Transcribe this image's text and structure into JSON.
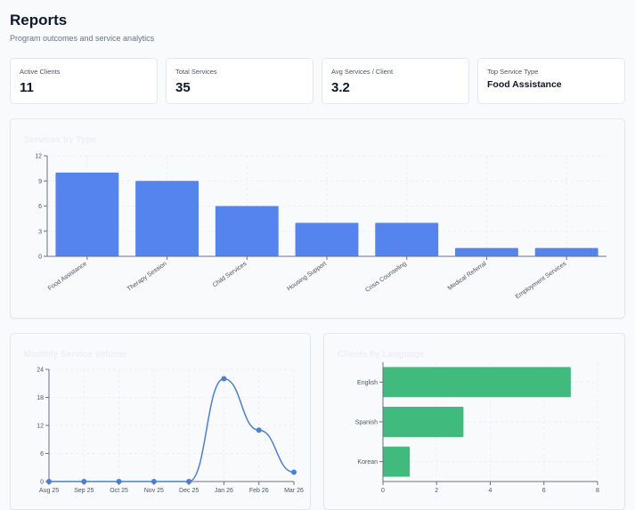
{
  "header": {
    "title": "Reports",
    "subtitle": "Program outcomes and service analytics"
  },
  "stats": [
    {
      "label": "Active Clients",
      "value": "11"
    },
    {
      "label": "Total Services",
      "value": "35"
    },
    {
      "label": "Avg Services / Client",
      "value": "3.2"
    },
    {
      "label": "Top Service Type",
      "value": "Food Assistance"
    }
  ],
  "panels": {
    "services_by_type": "Services by Type",
    "monthly_volume": "Monthly Service Volume",
    "clients_by_language": "Clients by Language"
  },
  "colors": {
    "bar_blue": "#5584ef",
    "line_blue": "#4a7fd4",
    "bar_green": "#40bb7d"
  },
  "chart_data": [
    {
      "type": "bar",
      "title": "Services by Type",
      "categories": [
        "Food Assistance",
        "Therapy Session",
        "Child Services",
        "Housing Support",
        "Crisis Counseling",
        "Medical Referral",
        "Employment Services"
      ],
      "values": [
        10,
        9,
        6,
        4,
        4,
        1,
        1
      ],
      "ylim": [
        0,
        12
      ],
      "yticks": [
        0,
        3,
        6,
        9,
        12
      ],
      "grid": true
    },
    {
      "type": "line",
      "title": "Monthly Service Volume",
      "x": [
        "Aug 25",
        "Sep 25",
        "Oct 25",
        "Nov 25",
        "Dec 25",
        "Jan 26",
        "Feb 26",
        "Mar 26"
      ],
      "values": [
        0,
        0,
        0,
        0,
        0,
        22,
        11,
        2
      ],
      "ylim": [
        0,
        24
      ],
      "yticks": [
        0,
        6,
        12,
        18,
        24
      ],
      "grid": true
    },
    {
      "type": "bar",
      "orientation": "horizontal",
      "title": "Clients by Language",
      "categories": [
        "English",
        "Spanish",
        "Korean"
      ],
      "values": [
        7,
        3,
        1
      ],
      "xlim": [
        0,
        8
      ],
      "xticks": [
        0,
        2,
        4,
        6,
        8
      ],
      "grid": true
    }
  ]
}
